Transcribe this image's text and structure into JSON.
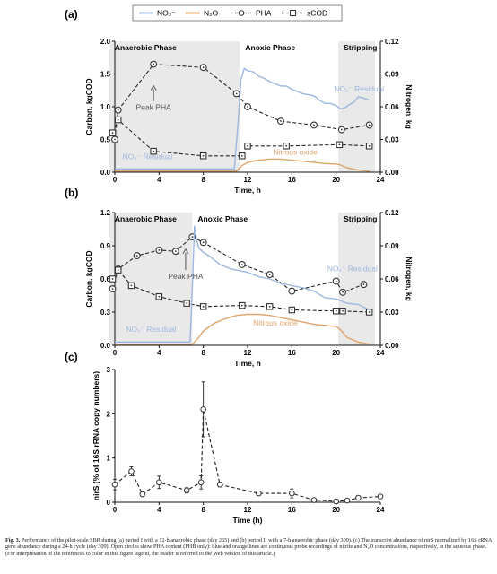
{
  "colors": {
    "no2": "#9db6df",
    "n2o": "#e0a46c",
    "pha": "#333333",
    "scod": "#333333",
    "shade": "#e9e9e9"
  },
  "legend": {
    "no2": "NO₂⁻",
    "n2o": "N₂O",
    "pha": "PHA",
    "scod": "sCOD"
  },
  "chart_data": [
    {
      "panel": "(a)",
      "type": "line",
      "xlabel": "Time, h",
      "ylabel": "Carbon, kgCOD",
      "ylabel_right": "Nitrogen, kg",
      "xlim": [
        0,
        24
      ],
      "xticks": [
        0,
        4,
        8,
        12,
        16,
        20,
        24
      ],
      "ylim": [
        0,
        2.0
      ],
      "yticks": [
        "0.0",
        "0.5",
        "1.0",
        "1.5",
        "2.0"
      ],
      "y2lim": [
        0,
        0.12
      ],
      "y2ticks": [
        "0.00",
        "0.03",
        "0.06",
        "0.09",
        "0.12"
      ],
      "phases": [
        {
          "label": "Anaerobic Phase",
          "start": -0.5,
          "end": 11.3,
          "shade": true
        },
        {
          "label": "Anoxic Phase",
          "start": 11.3,
          "end": 20.2,
          "shade": false
        },
        {
          "label": "Stripping",
          "start": 20.2,
          "end": 23.5,
          "shade": true
        }
      ],
      "series": [
        {
          "name": "PHA",
          "axis": "left",
          "marker": "circle-dot",
          "x": [
            0,
            0.3,
            3.5,
            8,
            11,
            12,
            15,
            18,
            20.5,
            23
          ],
          "y": [
            0.5,
            0.95,
            1.65,
            1.6,
            1.2,
            1.0,
            0.78,
            0.72,
            0.65,
            0.72
          ]
        },
        {
          "name": "sCOD",
          "axis": "left",
          "marker": "square-dot",
          "x": [
            -0.2,
            0.3,
            3.5,
            8,
            11.5,
            12,
            15.5,
            20.3,
            23
          ],
          "y": [
            0.6,
            0.8,
            0.32,
            0.25,
            0.25,
            0.4,
            0.4,
            0.42,
            0.4
          ]
        },
        {
          "name": "NO₂⁻",
          "axis": "right",
          "style": "area-line",
          "x": [
            0,
            10.8,
            11.1,
            11.4,
            11.7,
            12.0,
            12.5,
            13.0,
            13.5,
            14.0,
            14.5,
            15,
            15.5,
            16,
            16.5,
            17,
            17.5,
            18,
            18.5,
            19,
            19.5,
            20,
            20.4,
            20.8,
            21.2,
            21.6,
            22,
            22.5,
            23
          ],
          "y": [
            0.003,
            0.003,
            0.04,
            0.085,
            0.095,
            0.093,
            0.092,
            0.088,
            0.086,
            0.083,
            0.081,
            0.079,
            0.079,
            0.076,
            0.074,
            0.072,
            0.071,
            0.07,
            0.066,
            0.063,
            0.063,
            0.061,
            0.058,
            0.059,
            0.062,
            0.064,
            0.069,
            0.068,
            0.066
          ]
        },
        {
          "name": "N₂O",
          "axis": "right",
          "style": "area-line",
          "x": [
            0,
            11.0,
            11.5,
            12,
            13,
            14,
            15,
            16,
            17,
            18,
            19,
            20,
            20.3,
            21,
            22,
            23
          ],
          "y": [
            0.001,
            0.001,
            0.006,
            0.009,
            0.011,
            0.012,
            0.012,
            0.011,
            0.01,
            0.009,
            0.008,
            0.0075,
            0.007,
            0.004,
            0.002,
            0.001
          ]
        }
      ],
      "annotations": [
        {
          "text": "Peak PHA",
          "x": 3.5,
          "y": 0.95,
          "axis": "left",
          "arrow_to": [
            3.5,
            1.32
          ]
        },
        {
          "text": "NO₂⁻ Residual",
          "x": 0.7,
          "y": 0.012,
          "axis": "right"
        },
        {
          "text": "NO₂⁻ Residual",
          "x": 19.8,
          "y": 0.074,
          "axis": "right"
        },
        {
          "text": "Nitrous oxide",
          "x": 14.3,
          "y": 0.016,
          "axis": "right"
        }
      ]
    },
    {
      "panel": "(b)",
      "type": "line",
      "xlabel": "Time, h",
      "ylabel": "Carbon, kgCOD",
      "ylabel_right": "Nitrogen, kg",
      "xlim": [
        0,
        24
      ],
      "xticks": [
        0,
        4,
        8,
        12,
        16,
        20,
        24
      ],
      "ylim": [
        0,
        1.2
      ],
      "yticks": [
        "0.0",
        "0.3",
        "0.6",
        "0.9",
        "1.2"
      ],
      "y2lim": [
        0,
        0.12
      ],
      "y2ticks": [
        "0.00",
        "0.03",
        "0.06",
        "0.09",
        "0.12"
      ],
      "phases": [
        {
          "label": "Anaerobic Phase",
          "start": -0.5,
          "end": 7.0,
          "shade": true
        },
        {
          "label": "Anoxic Phase",
          "start": 7.0,
          "end": 20.2,
          "shade": false
        },
        {
          "label": "Stripping",
          "start": 20.2,
          "end": 23.5,
          "shade": true
        }
      ],
      "series": [
        {
          "name": "PHA",
          "axis": "left",
          "marker": "circle-dot",
          "x": [
            -0.2,
            0.3,
            2,
            4,
            5.5,
            7,
            8,
            11.5,
            14,
            16,
            20,
            20.6,
            22.5
          ],
          "y": [
            0.51,
            0.69,
            0.81,
            0.86,
            0.85,
            0.98,
            0.93,
            0.73,
            0.64,
            0.49,
            0.58,
            0.48,
            0.55
          ]
        },
        {
          "name": "sCOD",
          "axis": "left",
          "marker": "square-dot",
          "x": [
            -0.2,
            0.3,
            1.5,
            4,
            6.5,
            8,
            11.5,
            14,
            16,
            20,
            20.6,
            23
          ],
          "y": [
            0.6,
            0.68,
            0.54,
            0.44,
            0.38,
            0.35,
            0.36,
            0.35,
            0.32,
            0.31,
            0.31,
            0.3
          ]
        },
        {
          "name": "NO₂⁻",
          "axis": "right",
          "style": "area-line",
          "x": [
            0,
            6.8,
            7.0,
            7.2,
            7.4,
            7.6,
            8.0,
            8.5,
            9,
            9.5,
            10,
            10.5,
            11,
            11.5,
            12,
            12.5,
            13,
            13.5,
            14,
            14.5,
            15,
            15.5,
            16,
            17,
            18,
            19,
            20,
            20.5,
            21,
            22,
            23
          ],
          "y": [
            0.003,
            0.003,
            0.05,
            0.108,
            0.095,
            0.088,
            0.084,
            0.081,
            0.077,
            0.073,
            0.071,
            0.069,
            0.068,
            0.067,
            0.066,
            0.064,
            0.062,
            0.061,
            0.06,
            0.058,
            0.056,
            0.055,
            0.054,
            0.052,
            0.049,
            0.043,
            0.042,
            0.04,
            0.038,
            0.037,
            0.032
          ]
        },
        {
          "name": "N₂O",
          "axis": "right",
          "style": "area-line",
          "x": [
            0,
            7.0,
            7.5,
            8,
            9,
            10,
            11,
            12,
            13,
            14,
            15,
            16,
            17,
            18,
            19,
            20,
            20.3,
            21,
            22,
            23
          ],
          "y": [
            0.001,
            0.001,
            0.006,
            0.013,
            0.02,
            0.024,
            0.027,
            0.028,
            0.028,
            0.027,
            0.025,
            0.023,
            0.021,
            0.019,
            0.018,
            0.017,
            0.015,
            0.007,
            0.003,
            0.001
          ]
        }
      ],
      "annotations": [
        {
          "text": "Peak PHA",
          "x": 6.4,
          "y": 0.6,
          "axis": "left",
          "arrow_to": [
            6.4,
            0.87
          ]
        },
        {
          "text": "NO₂⁻ Residual",
          "x": 1.0,
          "y": 0.012,
          "axis": "right"
        },
        {
          "text": "NO₂⁻ Residual",
          "x": 19.2,
          "y": 0.067,
          "axis": "right"
        },
        {
          "text": "Nitrous oxide",
          "x": 12.5,
          "y": 0.018,
          "axis": "right"
        }
      ]
    },
    {
      "panel": "(c)",
      "type": "scatter",
      "xlabel": "Time (h)",
      "ylabel": "nirS (% of 16S rRNA copy numbers)",
      "xlim": [
        0,
        24
      ],
      "xticks": [
        0,
        4,
        8,
        12,
        16,
        20,
        24
      ],
      "ylim": [
        0,
        3
      ],
      "yticks": [
        "0",
        "1",
        "2",
        "3"
      ],
      "series": [
        {
          "name": "nirS",
          "marker": "open-circle",
          "style": "dashed",
          "x": [
            0,
            1.5,
            2.5,
            4,
            6.5,
            7.8,
            8,
            9.5,
            13,
            16,
            18,
            20,
            21,
            22,
            24
          ],
          "y": [
            0.4,
            0.7,
            0.18,
            0.45,
            0.27,
            0.45,
            2.1,
            0.4,
            0.2,
            0.2,
            0.05,
            0.02,
            0.04,
            0.1,
            0.13
          ],
          "err": [
            0.12,
            0.1,
            0.05,
            0.14,
            0.06,
            0.15,
            0.62,
            0.05,
            0.05,
            0.1,
            0.03,
            0.02,
            0.03,
            0.05,
            0.03
          ]
        }
      ]
    }
  ],
  "caption": {
    "label": "Fig. 3.",
    "text": "Performance of the pilot-scale SBR during (a) period I with a 12-h anaerobic phase (day 265) and (b) period II with a 7-h anaerobic phase (day 309). (c) The transcript abundance of nirS normalized by 16S rRNA gene abundance during a 24-h cycle (day 309). Open circles show PHA content (PHB only): blue and orange lines are continuous probe recordings of nitrite and N₂O concentrations, respectively, in the aqueous phase. (For interpretation of the references to color in this figure legend, the reader is referred to the Web version of this article.)"
  }
}
